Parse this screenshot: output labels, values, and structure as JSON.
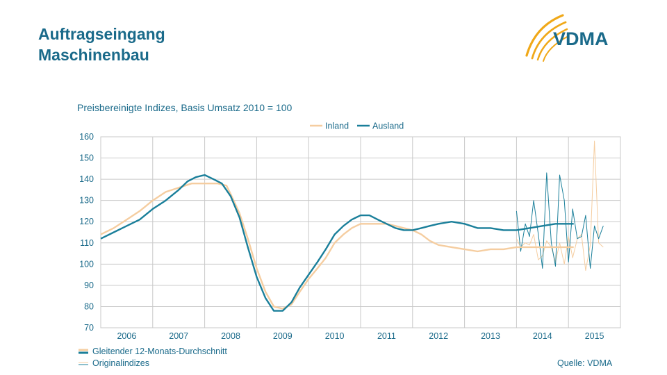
{
  "header": {
    "title_line1": "Auftragseingang",
    "title_line2": "Maschinenbau",
    "logo_text": "VDMA"
  },
  "footer": {
    "legend_avg": "Gleitender 12-Monats-Durchschnitt",
    "legend_orig": "Originalindizes",
    "source": "Quelle: VDMA"
  },
  "colors": {
    "inland": "#f5cda0",
    "ausland": "#1a7f9a",
    "grid": "#c9c9c9",
    "text": "#1a6a8a",
    "logo_arc": "#f0a818"
  },
  "chart_data": {
    "type": "line",
    "title": "Preisbereinigte Indizes, Basis Umsatz 2010 = 100",
    "xlabel": "",
    "ylabel": "",
    "ylim": [
      70,
      160
    ],
    "yticks": [
      70,
      80,
      90,
      100,
      110,
      120,
      130,
      140,
      150,
      160
    ],
    "categories": [
      "2006",
      "2007",
      "2008",
      "2009",
      "2010",
      "2011",
      "2012",
      "2013",
      "2014",
      "2015"
    ],
    "xlim": [
      2005.5,
      2015.5
    ],
    "grid": true,
    "legend_position": "top-center",
    "series": [
      {
        "name": "Inland",
        "kind": "moving_average",
        "x": [
          2005.5,
          2005.75,
          2006.0,
          2006.25,
          2006.5,
          2006.75,
          2007.0,
          2007.25,
          2007.5,
          2007.75,
          2007.92,
          2008.0,
          2008.17,
          2008.33,
          2008.5,
          2008.67,
          2008.83,
          2009.0,
          2009.17,
          2009.33,
          2009.5,
          2009.67,
          2009.83,
          2010.0,
          2010.17,
          2010.33,
          2010.5,
          2010.67,
          2010.83,
          2011.0,
          2011.17,
          2011.33,
          2011.5,
          2011.67,
          2011.83,
          2012.0,
          2012.25,
          2012.5,
          2012.75,
          2013.0,
          2013.25,
          2013.5,
          2013.75,
          2014.0,
          2014.25,
          2014.5,
          2014.6
        ],
        "values": [
          114,
          117,
          121,
          125,
          130,
          134,
          136,
          138,
          138,
          138,
          137,
          133,
          124,
          112,
          98,
          87,
          80,
          79,
          81,
          87,
          93,
          98,
          103,
          110,
          114,
          117,
          119,
          119,
          119,
          119,
          118,
          117,
          116,
          114,
          111,
          109,
          108,
          107,
          106,
          107,
          107,
          108,
          108,
          108,
          108,
          108,
          108
        ]
      },
      {
        "name": "Ausland",
        "kind": "moving_average",
        "x": [
          2005.5,
          2005.75,
          2006.0,
          2006.25,
          2006.5,
          2006.75,
          2007.0,
          2007.17,
          2007.33,
          2007.5,
          2007.67,
          2007.83,
          2008.0,
          2008.17,
          2008.33,
          2008.5,
          2008.67,
          2008.83,
          2009.0,
          2009.17,
          2009.33,
          2009.5,
          2009.67,
          2009.83,
          2010.0,
          2010.17,
          2010.33,
          2010.5,
          2010.67,
          2010.83,
          2011.0,
          2011.17,
          2011.33,
          2011.5,
          2011.67,
          2011.83,
          2012.0,
          2012.25,
          2012.5,
          2012.75,
          2013.0,
          2013.25,
          2013.5,
          2013.75,
          2014.0,
          2014.25,
          2014.5,
          2014.6
        ],
        "values": [
          112,
          115,
          118,
          121,
          126,
          130,
          135,
          139,
          141,
          142,
          140,
          138,
          132,
          122,
          108,
          94,
          84,
          78,
          78,
          82,
          89,
          95,
          101,
          107,
          114,
          118,
          121,
          123,
          123,
          121,
          119,
          117,
          116,
          116,
          117,
          118,
          119,
          120,
          119,
          117,
          117,
          116,
          116,
          117,
          118,
          119,
          119,
          119
        ]
      },
      {
        "name": "Inland",
        "kind": "original",
        "x": [
          2013.5,
          2013.58,
          2013.67,
          2013.75,
          2013.83,
          2013.92,
          2014.0,
          2014.08,
          2014.17,
          2014.25,
          2014.33,
          2014.42,
          2014.5,
          2014.58,
          2014.67,
          2014.75,
          2014.83,
          2014.92,
          2015.0,
          2015.08,
          2015.17
        ],
        "values": [
          112,
          108,
          110,
          109,
          114,
          102,
          104,
          111,
          108,
          101,
          110,
          100,
          113,
          103,
          112,
          114,
          97,
          109,
          158,
          110,
          108
        ]
      },
      {
        "name": "Ausland",
        "kind": "original",
        "x": [
          2013.5,
          2013.58,
          2013.67,
          2013.75,
          2013.83,
          2013.92,
          2014.0,
          2014.08,
          2014.17,
          2014.25,
          2014.33,
          2014.42,
          2014.5,
          2014.58,
          2014.67,
          2014.75,
          2014.83,
          2014.92,
          2015.0,
          2015.08,
          2015.17
        ],
        "values": [
          125,
          106,
          119,
          113,
          130,
          114,
          98,
          143,
          110,
          99,
          142,
          130,
          101,
          126,
          112,
          113,
          123,
          98,
          118,
          112,
          118
        ]
      }
    ]
  }
}
